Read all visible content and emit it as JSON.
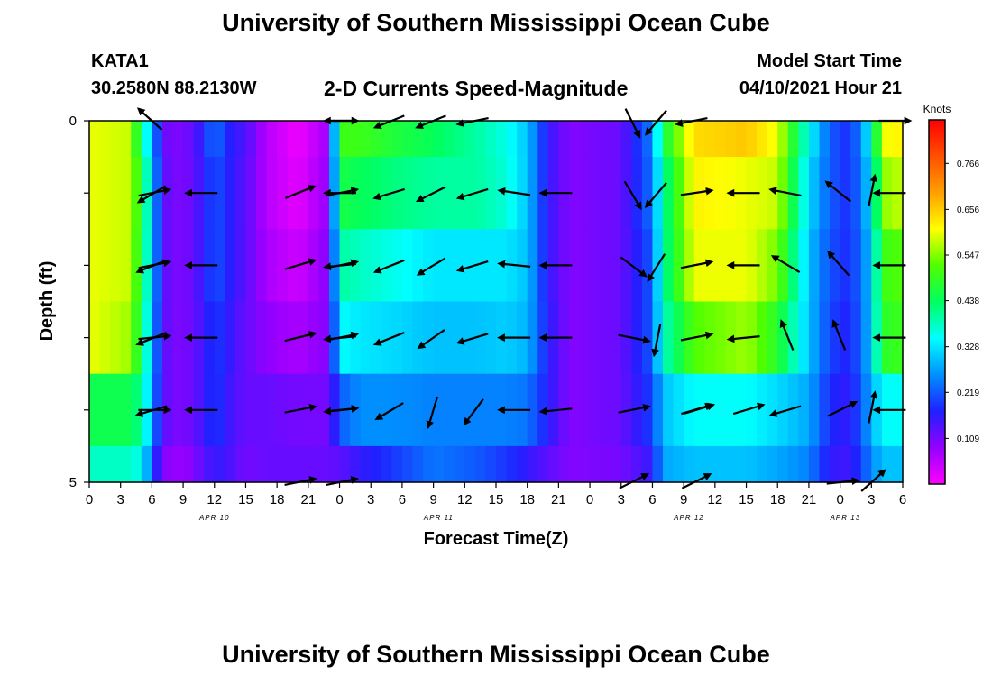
{
  "header": {
    "title": "University of Southern Mississippi Ocean Cube",
    "station": "KATA1",
    "coords": "30.2580N  88.2130W",
    "subtitle": "2-D Currents Speed-Magnitude",
    "start_label": "Model Start Time",
    "start_value": "04/10/2021 Hour 21"
  },
  "footer": {
    "title": "University of Southern Mississippi Ocean Cube"
  },
  "chart_data": {
    "type": "heatmap",
    "xlabel": "Forecast Time(Z)",
    "ylabel": "Depth (ft)",
    "x_range_hours": [
      0,
      78
    ],
    "ylim": [
      0,
      5
    ],
    "x_tick_labels": [
      "0",
      "3",
      "6",
      "9",
      "12",
      "15",
      "18",
      "21",
      "0",
      "3",
      "6",
      "9",
      "12",
      "15",
      "18",
      "21",
      "0",
      "3",
      "6",
      "9",
      "12",
      "15",
      "18",
      "21",
      "0",
      "3",
      "6"
    ],
    "y_tick_labels": [
      "0",
      "5"
    ],
    "day_labels": [
      {
        "text": "APR 10",
        "hour": 12
      },
      {
        "text": "APR 11",
        "hour": 33.5
      },
      {
        "text": "APR 12",
        "hour": 57.5
      },
      {
        "text": "APR 13",
        "hour": 72.5
      }
    ],
    "colorbar": {
      "label": "Knots",
      "ticks": [
        "0.766",
        "0.656",
        "0.547",
        "0.438",
        "0.328",
        "0.219",
        "0.109"
      ],
      "range": [
        0,
        0.87
      ],
      "colors": [
        "#ff00ff",
        "#9400ff",
        "#2020ff",
        "#0090ff",
        "#00ffff",
        "#00ff60",
        "#50ff00",
        "#ffff00",
        "#ffa000",
        "#ff5000",
        "#ff0000"
      ]
    },
    "depth_rows": [
      0,
      1,
      2,
      3,
      4,
      5
    ],
    "columns": [
      {
        "h": 0,
        "v": [
          0.6,
          0.6,
          0.6,
          0.6,
          0.45,
          0.38
        ]
      },
      {
        "h": 4,
        "v": [
          0.58,
          0.58,
          0.58,
          0.56,
          0.45,
          0.38
        ]
      },
      {
        "h": 5,
        "v": [
          0.4,
          0.45,
          0.44,
          0.43,
          0.4,
          0.35
        ]
      },
      {
        "h": 6,
        "v": [
          0.3,
          0.32,
          0.32,
          0.3,
          0.28,
          0.22
        ]
      },
      {
        "h": 7,
        "v": [
          0.12,
          0.13,
          0.13,
          0.13,
          0.13,
          0.1
        ]
      },
      {
        "h": 9,
        "v": [
          0.1,
          0.1,
          0.1,
          0.1,
          0.1,
          0.08
        ]
      },
      {
        "h": 11,
        "v": [
          0.17,
          0.16,
          0.16,
          0.15,
          0.15,
          0.13
        ]
      },
      {
        "h": 12,
        "v": [
          0.25,
          0.22,
          0.22,
          0.2,
          0.2,
          0.16
        ]
      },
      {
        "h": 13,
        "v": [
          0.18,
          0.18,
          0.18,
          0.17,
          0.16,
          0.15
        ]
      },
      {
        "h": 15,
        "v": [
          0.14,
          0.13,
          0.13,
          0.12,
          0.12,
          0.11
        ]
      },
      {
        "h": 17,
        "v": [
          0.06,
          0.06,
          0.07,
          0.09,
          0.12,
          0.12
        ]
      },
      {
        "h": 20,
        "v": [
          0.01,
          0.02,
          0.04,
          0.07,
          0.11,
          0.12
        ]
      },
      {
        "h": 23,
        "v": [
          0.08,
          0.09,
          0.1,
          0.1,
          0.11,
          0.12
        ]
      },
      {
        "h": 24,
        "v": [
          0.5,
          0.46,
          0.4,
          0.35,
          0.22,
          0.13
        ]
      },
      {
        "h": 26,
        "v": [
          0.5,
          0.44,
          0.38,
          0.33,
          0.26,
          0.16
        ]
      },
      {
        "h": 29,
        "v": [
          0.47,
          0.42,
          0.36,
          0.32,
          0.26,
          0.19
        ]
      },
      {
        "h": 33,
        "v": [
          0.44,
          0.4,
          0.33,
          0.3,
          0.25,
          0.24
        ]
      },
      {
        "h": 37,
        "v": [
          0.4,
          0.4,
          0.33,
          0.3,
          0.25,
          0.22
        ]
      },
      {
        "h": 40,
        "v": [
          0.36,
          0.37,
          0.33,
          0.31,
          0.25,
          0.19
        ]
      },
      {
        "h": 42,
        "v": [
          0.3,
          0.3,
          0.3,
          0.29,
          0.24,
          0.16
        ]
      },
      {
        "h": 44,
        "v": [
          0.16,
          0.16,
          0.16,
          0.17,
          0.17,
          0.13
        ]
      },
      {
        "h": 46,
        "v": [
          0.1,
          0.1,
          0.1,
          0.1,
          0.1,
          0.1
        ]
      },
      {
        "h": 51,
        "v": [
          0.12,
          0.12,
          0.12,
          0.12,
          0.12,
          0.11
        ]
      },
      {
        "h": 54,
        "v": [
          0.25,
          0.24,
          0.22,
          0.22,
          0.2,
          0.16
        ]
      },
      {
        "h": 55,
        "v": [
          0.45,
          0.4,
          0.4,
          0.38,
          0.3,
          0.28
        ]
      },
      {
        "h": 58,
        "v": [
          0.64,
          0.62,
          0.6,
          0.52,
          0.35,
          0.3
        ]
      },
      {
        "h": 63,
        "v": [
          0.66,
          0.6,
          0.6,
          0.56,
          0.35,
          0.3
        ]
      },
      {
        "h": 66,
        "v": [
          0.6,
          0.58,
          0.54,
          0.48,
          0.32,
          0.28
        ]
      },
      {
        "h": 69,
        "v": [
          0.35,
          0.32,
          0.3,
          0.3,
          0.28,
          0.25
        ]
      },
      {
        "h": 71,
        "v": [
          0.22,
          0.22,
          0.21,
          0.2,
          0.18,
          0.16
        ]
      },
      {
        "h": 73,
        "v": [
          0.18,
          0.18,
          0.18,
          0.17,
          0.16,
          0.15
        ]
      },
      {
        "h": 75,
        "v": [
          0.35,
          0.32,
          0.3,
          0.3,
          0.28,
          0.25
        ]
      },
      {
        "h": 76,
        "v": [
          0.6,
          0.55,
          0.5,
          0.48,
          0.35,
          0.3
        ]
      },
      {
        "h": 78,
        "v": [
          0.62,
          0.58,
          0.52,
          0.5,
          0.35,
          0.3
        ]
      }
    ],
    "vectors": [
      {
        "h": 6,
        "dir": [
          [
            -1,
            0.9
          ],
          [
            1,
            0.2
          ],
          [
            1,
            0.2
          ],
          [
            1,
            0.1
          ],
          [
            1,
            0
          ],
          [
            0,
            0
          ]
        ]
      },
      {
        "h": 6.2,
        "dir": [
          [
            0,
            0
          ],
          [
            -1,
            -0.6
          ],
          [
            -1,
            -0.4
          ],
          [
            -1,
            -0.4
          ],
          [
            -1,
            -0.3
          ],
          [
            0,
            0
          ]
        ]
      },
      {
        "h": 11,
        "dir": [
          [
            0,
            0
          ],
          [
            -1,
            0
          ],
          [
            -1,
            0
          ],
          [
            -1,
            0
          ],
          [
            -1,
            0
          ],
          [
            0,
            0
          ]
        ]
      },
      {
        "h": 20,
        "dir": [
          [
            0,
            0
          ],
          [
            1,
            0.4
          ],
          [
            1,
            0.3
          ],
          [
            1,
            0.25
          ],
          [
            1,
            0.2
          ],
          [
            1,
            0.2
          ]
        ]
      },
      {
        "h": 24,
        "dir": [
          [
            1,
            0
          ],
          [
            1,
            0.2
          ],
          [
            1,
            0.2
          ],
          [
            1,
            0.2
          ],
          [
            1,
            0.1
          ],
          [
            1,
            0.2
          ]
        ]
      },
      {
        "h": 24.3,
        "dir": [
          [
            -1,
            0
          ],
          [
            -1,
            0
          ],
          [
            -1,
            -0.1
          ],
          [
            -1,
            -0.1
          ],
          [
            -1,
            -0.1
          ],
          [
            0,
            0
          ]
        ]
      },
      {
        "h": 29,
        "dir": [
          [
            -1,
            -0.4
          ],
          [
            -1,
            -0.3
          ],
          [
            -1,
            -0.4
          ],
          [
            -1,
            -0.4
          ],
          [
            -1,
            -0.6
          ],
          [
            0,
            0
          ]
        ]
      },
      {
        "h": 33,
        "dir": [
          [
            -1,
            -0.4
          ],
          [
            -1,
            -0.5
          ],
          [
            -1,
            -0.6
          ],
          [
            -1,
            -0.7
          ],
          [
            -0.3,
            -1
          ],
          [
            0,
            0
          ]
        ]
      },
      {
        "h": 37,
        "dir": [
          [
            -1,
            -0.2
          ],
          [
            -1,
            -0.3
          ],
          [
            -1,
            -0.3
          ],
          [
            -1,
            -0.3
          ],
          [
            -0.6,
            -0.8
          ],
          [
            0,
            0
          ]
        ]
      },
      {
        "h": 41,
        "dir": [
          [
            0,
            0
          ],
          [
            -1,
            0.15
          ],
          [
            -1,
            0.1
          ],
          [
            -1,
            0
          ],
          [
            -1,
            0
          ],
          [
            0,
            0
          ]
        ]
      },
      {
        "h": 45,
        "dir": [
          [
            0,
            0
          ],
          [
            -1,
            0
          ],
          [
            -1,
            0
          ],
          [
            -1,
            0
          ],
          [
            -1,
            -0.1
          ],
          [
            0,
            0
          ]
        ]
      },
      {
        "h": 52,
        "dir": [
          [
            0.5,
            -1
          ],
          [
            0.6,
            -1
          ],
          [
            0.8,
            -0.6
          ],
          [
            1,
            -0.2
          ],
          [
            1,
            0.2
          ],
          [
            1,
            0.5
          ]
        ]
      },
      {
        "h": 54.5,
        "dir": [
          [
            -0.6,
            -0.7
          ],
          [
            -0.6,
            -0.7
          ],
          [
            -0.5,
            -0.8
          ],
          [
            -0.2,
            -1
          ],
          [
            0,
            0
          ],
          [
            0,
            0
          ]
        ]
      },
      {
        "h": 58,
        "dir": [
          [
            -1,
            -0.2
          ],
          [
            1,
            0.15
          ],
          [
            1,
            0.2
          ],
          [
            1,
            0.2
          ],
          [
            1,
            0.3
          ],
          [
            1,
            0.5
          ]
        ]
      },
      {
        "h": 58.2,
        "dir": [
          [
            0,
            0
          ],
          [
            0,
            0
          ],
          [
            0,
            0
          ],
          [
            0,
            0
          ],
          [
            1,
            0.3
          ],
          [
            0,
            0
          ]
        ]
      },
      {
        "h": 63,
        "dir": [
          [
            0,
            0
          ],
          [
            -1,
            0
          ],
          [
            -1,
            0
          ],
          [
            -1,
            -0.1
          ],
          [
            1,
            0.3
          ],
          [
            0,
            0
          ]
        ]
      },
      {
        "h": 67,
        "dir": [
          [
            0,
            0
          ],
          [
            -1,
            0.2
          ],
          [
            -1,
            0.6
          ],
          [
            -0.4,
            1
          ],
          [
            -1,
            -0.3
          ],
          [
            0,
            0
          ]
        ]
      },
      {
        "h": 72,
        "dir": [
          [
            0,
            0
          ],
          [
            -1,
            0.8
          ],
          [
            -0.7,
            0.8
          ],
          [
            -0.4,
            1
          ],
          [
            1,
            0.5
          ],
          [
            1,
            0.1
          ]
        ]
      },
      {
        "h": 75,
        "dir": [
          [
            0,
            0
          ],
          [
            0.2,
            1
          ],
          [
            0,
            0
          ],
          [
            0,
            0
          ],
          [
            0.2,
            1
          ],
          [
            1,
            0.9
          ]
        ]
      },
      {
        "h": 77,
        "dir": [
          [
            1,
            0
          ],
          [
            -1,
            0
          ],
          [
            -1,
            0
          ],
          [
            -1,
            0
          ],
          [
            -1,
            0
          ],
          [
            0,
            0
          ]
        ]
      }
    ]
  }
}
